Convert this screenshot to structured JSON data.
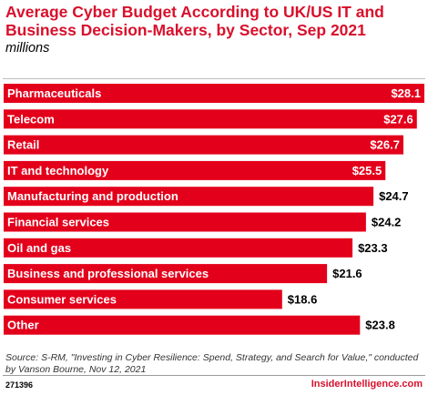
{
  "title": "Average Cyber Budget According to UK/US IT and Business Decision-Makers, by Sector, Sep 2021",
  "subtitle": "millions",
  "chart_data": {
    "type": "bar",
    "orientation": "horizontal",
    "categories": [
      "Pharmaceuticals",
      "Telecom",
      "Retail",
      "IT and technology",
      "Manufacturing and production",
      "Financial services",
      "Oil and gas",
      "Business and professional services",
      "Consumer services",
      "Other"
    ],
    "values": [
      28.1,
      27.6,
      26.7,
      25.5,
      24.7,
      24.2,
      23.3,
      21.6,
      18.6,
      23.8
    ],
    "value_labels": [
      "$28.1",
      "$27.6",
      "$26.7",
      "$25.5",
      "$24.7",
      "$24.2",
      "$23.3",
      "$21.6",
      "$18.6",
      "$23.8"
    ],
    "xlim": [
      0,
      28.1
    ],
    "grid": false,
    "bar_color": "#e3001b"
  },
  "source": "Source: S-RM, \"Investing in Cyber Resilience: Spend, Strategy, and Search for Value,\" conducted by Vanson Bourne, Nov 12, 2021",
  "chart_id": "271396",
  "brand": "InsiderIntelligence.com",
  "colors": {
    "accent": "#d8102c",
    "bar": "#e3001b"
  }
}
